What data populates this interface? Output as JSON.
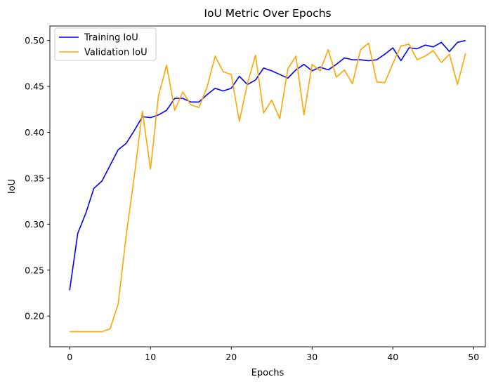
{
  "chart_data": {
    "type": "line",
    "title": "IoU Metric Over Epochs",
    "xlabel": "Epochs",
    "ylabel": "IoU",
    "xlim": [
      -2.45,
      51.45
    ],
    "ylim": [
      0.1665,
      0.5158
    ],
    "xticks": [
      0,
      10,
      20,
      30,
      40,
      50
    ],
    "yticks": [
      0.2,
      0.25,
      0.3,
      0.35,
      0.4,
      0.45,
      0.5
    ],
    "ytick_labels": [
      "0.20",
      "0.25",
      "0.30",
      "0.35",
      "0.40",
      "0.45",
      "0.50"
    ],
    "grid": false,
    "legend_position": "top-left",
    "x": [
      0,
      1,
      2,
      3,
      4,
      5,
      6,
      7,
      8,
      9,
      10,
      11,
      12,
      13,
      14,
      15,
      16,
      17,
      18,
      19,
      20,
      21,
      22,
      23,
      24,
      25,
      26,
      27,
      28,
      29,
      30,
      31,
      32,
      33,
      34,
      35,
      36,
      37,
      38,
      39,
      40,
      41,
      42,
      43,
      44,
      45,
      46,
      47,
      48,
      49
    ],
    "series": [
      {
        "name": "Training IoU",
        "color": "#0000ff",
        "values": [
          0.228,
          0.29,
          0.312,
          0.339,
          0.347,
          0.364,
          0.381,
          0.388,
          0.402,
          0.417,
          0.416,
          0.419,
          0.424,
          0.437,
          0.437,
          0.433,
          0.433,
          0.441,
          0.448,
          0.445,
          0.448,
          0.461,
          0.452,
          0.457,
          0.47,
          0.467,
          0.463,
          0.459,
          0.468,
          0.474,
          0.467,
          0.471,
          0.468,
          0.474,
          0.481,
          0.479,
          0.479,
          0.478,
          0.479,
          0.485,
          0.492,
          0.478,
          0.492,
          0.491,
          0.495,
          0.493,
          0.498,
          0.488,
          0.498,
          0.5
        ]
      },
      {
        "name": "Validation IoU",
        "color": "#ffa500",
        "values": [
          0.183,
          0.183,
          0.183,
          0.183,
          0.183,
          0.186,
          0.213,
          0.288,
          0.352,
          0.423,
          0.36,
          0.44,
          0.473,
          0.424,
          0.444,
          0.43,
          0.427,
          0.449,
          0.483,
          0.466,
          0.463,
          0.412,
          0.453,
          0.484,
          0.421,
          0.435,
          0.415,
          0.469,
          0.483,
          0.419,
          0.474,
          0.467,
          0.49,
          0.46,
          0.468,
          0.453,
          0.49,
          0.497,
          0.455,
          0.454,
          0.475,
          0.494,
          0.496,
          0.479,
          0.483,
          0.489,
          0.476,
          0.485,
          0.452,
          0.486
        ]
      }
    ]
  }
}
